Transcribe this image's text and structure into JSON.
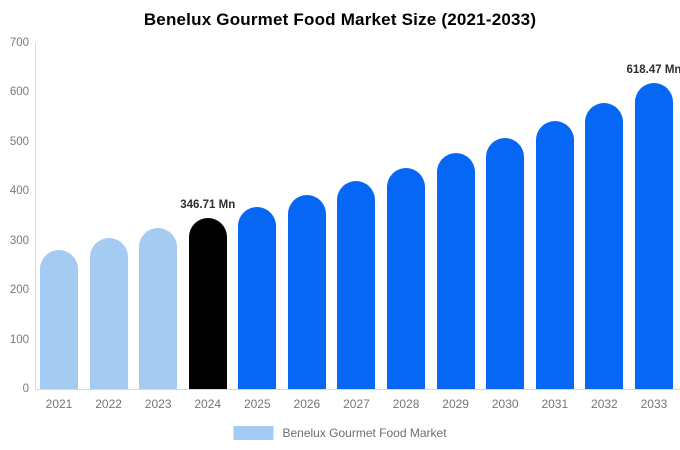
{
  "chart": {
    "title": "Benelux Gourmet Food Market Size (2021-2033)"
  },
  "chart_data": {
    "type": "bar",
    "title": "Benelux Gourmet Food Market Size (2021-2033)",
    "categories": [
      "2021",
      "2022",
      "2023",
      "2024",
      "2025",
      "2026",
      "2027",
      "2028",
      "2029",
      "2030",
      "2031",
      "2032",
      "2033"
    ],
    "series": [
      {
        "name": "Benelux Gourmet Food Market",
        "values": [
          282,
          305,
          325,
          346.71,
          369,
          393,
          420,
          448,
          477,
          508,
          543,
          579,
          618.47
        ]
      }
    ],
    "value_unit": "Mn",
    "ylim": [
      0,
      700
    ],
    "yticks": [
      0,
      100,
      200,
      300,
      400,
      500,
      600,
      700
    ],
    "grid": false,
    "legend_position": "bottom",
    "legend_label": "Benelux Gourmet Food Market",
    "annotations": [
      {
        "category": "2024",
        "text": "346.71 Mn"
      },
      {
        "category": "2033",
        "text": "618.47 Mn"
      }
    ],
    "bar_colors": [
      "#A5CBF3",
      "#A5CBF3",
      "#A5CBF3",
      "#000000",
      "#0567F3",
      "#0567F3",
      "#0567F3",
      "#0567F3",
      "#0567F3",
      "#0567F3",
      "#0567F3",
      "#0567F3",
      "#0567F3"
    ],
    "colors": {
      "historical": "#A5CBF3",
      "highlight": "#000000",
      "forecast": "#0567F3",
      "axis_line": "#D9D9D9",
      "tick_text": "#7A7A7A",
      "annotation_text": "#2E2E2E",
      "title_text": "#000000",
      "legend_text": "#6E6E6E"
    }
  }
}
